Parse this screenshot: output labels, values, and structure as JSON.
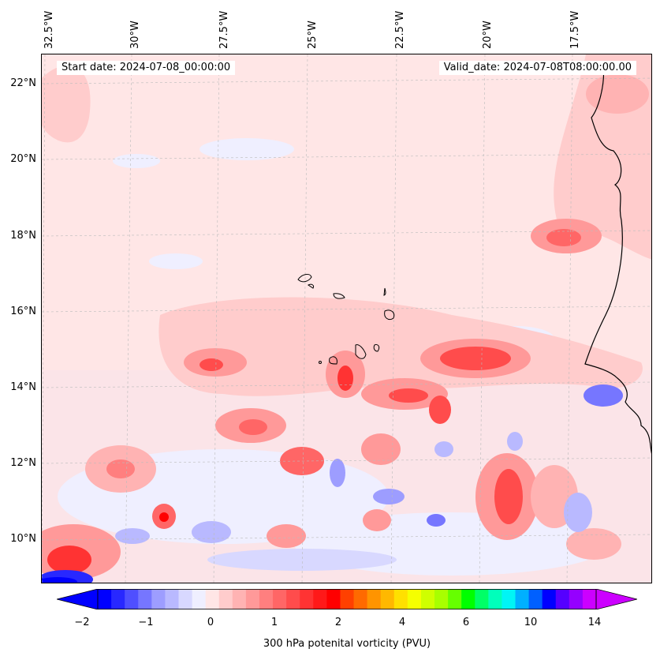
{
  "header": {
    "start_date": "Start date: 2024-07-08_00:00:00",
    "valid_date": "Valid_date: 2024-07-08T08:00:00.00"
  },
  "axes": {
    "lon_labels": [
      "32.5°W",
      "30°W",
      "27.5°W",
      "25°W",
      "22.5°W",
      "20°W",
      "17.5°W"
    ],
    "lat_labels": [
      "22°N",
      "20°N",
      "18°N",
      "16°N",
      "14°N",
      "12°N",
      "10°N"
    ]
  },
  "colorbar": {
    "label": "300 hPa potenital vorticity (PVU)",
    "ticks": [
      "−2",
      "−1",
      "0",
      "1",
      "2",
      "4",
      "6",
      "10",
      "14"
    ],
    "colors": [
      "#0000ff",
      "#2828ff",
      "#4f4fff",
      "#7676ff",
      "#9d9dff",
      "#b9b9ff",
      "#d8d8ff",
      "#efefff",
      "#ffe6e6",
      "#ffcccc",
      "#ffb3b3",
      "#ff9999",
      "#ff7f7f",
      "#ff6666",
      "#ff4c4c",
      "#ff3333",
      "#ff1919",
      "#ff0000",
      "#ff4000",
      "#ff6a00",
      "#ff9400",
      "#ffb800",
      "#ffe000",
      "#f5ff00",
      "#cfff00",
      "#a8ff00",
      "#66ff00",
      "#00ff00",
      "#00ff66",
      "#00ffbb",
      "#00f5f5",
      "#00b0ff",
      "#0060ff",
      "#0000ff",
      "#5500ff",
      "#9500ff",
      "#cc00ff"
    ],
    "extend_low": "#0000ff",
    "extend_high": "#cc00ff"
  },
  "map_features": {
    "blobs": [
      {
        "color": "#ffcccc"
      },
      {
        "color": "#ff9999"
      },
      {
        "color": "#ff4c4c"
      },
      {
        "color": "#d8d8ff"
      },
      {
        "color": "#7676ff"
      }
    ]
  }
}
